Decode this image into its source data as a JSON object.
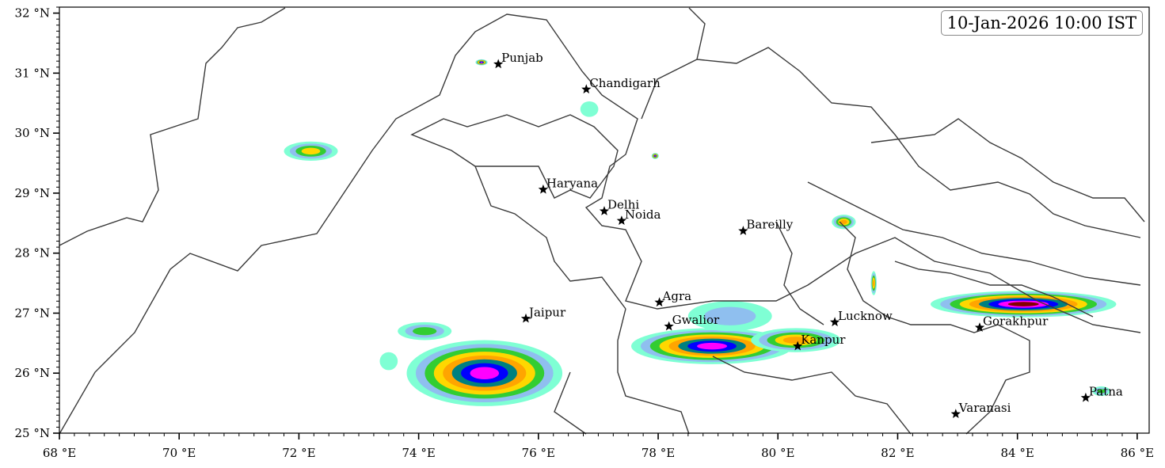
{
  "timestamp": "10-Jan-2026 10:00 IST",
  "axes": {
    "lon_range": [
      68,
      86.2
    ],
    "lat_range": [
      25,
      32.1
    ],
    "lon_ticks": [
      {
        "value": 68,
        "label": "68 °E"
      },
      {
        "value": 70,
        "label": "70 °E"
      },
      {
        "value": 72,
        "label": "72 °E"
      },
      {
        "value": 74,
        "label": "74 °E"
      },
      {
        "value": 76,
        "label": "76 °E"
      },
      {
        "value": 78,
        "label": "78 °E"
      },
      {
        "value": 80,
        "label": "80 °E"
      },
      {
        "value": 82,
        "label": "82 °E"
      },
      {
        "value": 84,
        "label": "84 °E"
      },
      {
        "value": 86,
        "label": "86 °E"
      }
    ],
    "lat_ticks": [
      {
        "value": 25,
        "label": "25 °N"
      },
      {
        "value": 26,
        "label": "26 °N"
      },
      {
        "value": 27,
        "label": "27 °N"
      },
      {
        "value": 28,
        "label": "28 °N"
      },
      {
        "value": 29,
        "label": "29 °N"
      },
      {
        "value": 30,
        "label": "30 °N"
      },
      {
        "value": 31,
        "label": "31 °N"
      },
      {
        "value": 32,
        "label": "32 °N"
      }
    ]
  },
  "cities": [
    {
      "name": "Punjab",
      "lon": 75.33,
      "lat": 31.15
    },
    {
      "name": "Chandigarh",
      "lon": 76.8,
      "lat": 30.73
    },
    {
      "name": "Haryana",
      "lon": 76.08,
      "lat": 29.06
    },
    {
      "name": "Delhi",
      "lon": 77.1,
      "lat": 28.7
    },
    {
      "name": "Noida",
      "lon": 77.39,
      "lat": 28.54
    },
    {
      "name": "Bareilly",
      "lon": 79.42,
      "lat": 28.37
    },
    {
      "name": "Agra",
      "lon": 78.02,
      "lat": 27.18
    },
    {
      "name": "Jaipur",
      "lon": 75.79,
      "lat": 26.91
    },
    {
      "name": "Gwalior",
      "lon": 78.18,
      "lat": 26.78
    },
    {
      "name": "Lucknow",
      "lon": 80.95,
      "lat": 26.85
    },
    {
      "name": "Gorakhpur",
      "lon": 83.37,
      "lat": 26.76
    },
    {
      "name": "Kanpur",
      "lon": 80.33,
      "lat": 26.45
    },
    {
      "name": "Varanasi",
      "lon": 82.97,
      "lat": 25.32
    },
    {
      "name": "Patna",
      "lon": 85.14,
      "lat": 25.59
    }
  ],
  "precip_colors": [
    "#7fffd4",
    "#8fbfef",
    "#32cd32",
    "#ffd700",
    "#ffa500",
    "#008080",
    "#0000ff",
    "#ff00ff",
    "#800000"
  ],
  "precip_cells": [
    {
      "lon": 75.1,
      "lat": 26.0,
      "rlon": 1.3,
      "rlat": 0.55,
      "levels": 8
    },
    {
      "lon": 74.1,
      "lat": 26.7,
      "rlon": 0.45,
      "rlat": 0.15,
      "levels": 3
    },
    {
      "lon": 73.5,
      "lat": 26.2,
      "rlon": 0.15,
      "rlat": 0.15,
      "levels": 1
    },
    {
      "lon": 78.9,
      "lat": 26.45,
      "rlon": 1.35,
      "rlat": 0.3,
      "levels": 8
    },
    {
      "lon": 80.3,
      "lat": 26.55,
      "rlon": 0.75,
      "rlat": 0.2,
      "levels": 5
    },
    {
      "lon": 79.2,
      "lat": 26.95,
      "rlon": 0.7,
      "rlat": 0.25,
      "levels": 2
    },
    {
      "lon": 84.1,
      "lat": 27.15,
      "rlon": 1.55,
      "rlat": 0.22,
      "levels": 9
    },
    {
      "lon": 72.2,
      "lat": 29.7,
      "rlon": 0.45,
      "rlat": 0.16,
      "levels": 4
    },
    {
      "lon": 81.1,
      "lat": 28.52,
      "rlon": 0.2,
      "rlat": 0.12,
      "levels": 5
    },
    {
      "lon": 76.85,
      "lat": 30.4,
      "rlon": 0.15,
      "rlat": 0.13,
      "levels": 1
    },
    {
      "lon": 75.05,
      "lat": 31.18,
      "rlon": 0.1,
      "rlat": 0.05,
      "levels": 8
    },
    {
      "lon": 77.95,
      "lat": 29.62,
      "rlon": 0.06,
      "rlat": 0.05,
      "levels": 8
    },
    {
      "lon": 81.6,
      "lat": 27.5,
      "rlon": 0.05,
      "rlat": 0.2,
      "levels": 5
    },
    {
      "lon": 85.4,
      "lat": 25.7,
      "rlon": 0.15,
      "rlat": 0.08,
      "levels": 3
    }
  ]
}
